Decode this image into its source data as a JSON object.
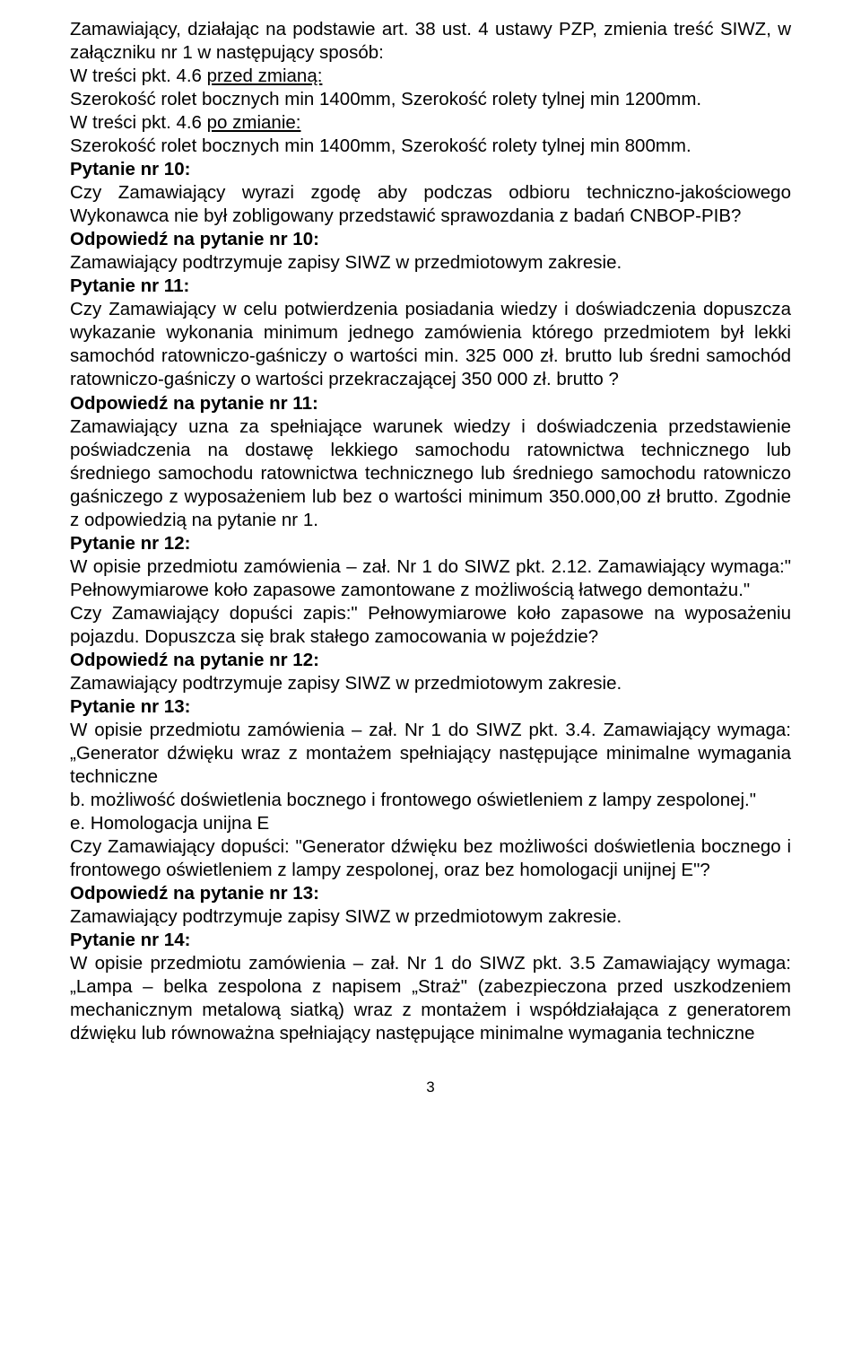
{
  "document": {
    "p01": "Zamawiający, działając na podstawie art. 38 ust. 4 ustawy PZP, zmienia treść SIWZ, w załączniku nr 1 w następujący sposób:",
    "p02a": "W treści pkt. 4.6 ",
    "p02b": "przed zmianą:",
    "p03": "Szerokość rolet bocznych min 1400mm, Szerokość rolety tylnej min 1200mm.",
    "p04a": "W treści pkt. 4.6 ",
    "p04b": "po zmianie:",
    "p05": "Szerokość rolet bocznych min 1400mm, Szerokość rolety tylnej min 800mm.",
    "q10_label": "Pytanie nr 10:",
    "q10_text": "Czy Zamawiający wyrazi zgodę aby podczas odbioru techniczno-jakościowego Wykonawca nie był zobligowany przedstawić sprawozdania z badań CNBOP-PIB?",
    "a10_label": "Odpowiedź na pytanie nr 10:",
    "a10_text": "Zamawiający podtrzymuje zapisy SIWZ w przedmiotowym zakresie.",
    "q11_label": "Pytanie nr 11:",
    "q11_text": "Czy Zamawiający w celu potwierdzenia posiadania wiedzy i doświadczenia dopuszcza wykazanie wykonania minimum jednego zamówienia którego przedmiotem był lekki samochód ratowniczo-gaśniczy o wartości min. 325 000 zł. brutto lub średni samochód ratowniczo-gaśniczy o wartości przekraczającej 350 000 zł. brutto ?",
    "a11_label": "Odpowiedź na pytanie nr 11:",
    "a11_text": "Zamawiający uzna za spełniające warunek wiedzy i doświadczenia przedstawienie poświadczenia na dostawę lekkiego samochodu ratownictwa technicznego lub średniego samochodu ratownictwa technicznego lub średniego samochodu ratowniczo gaśniczego z wyposażeniem lub bez o wartości minimum 350.000,00 zł brutto. Zgodnie z odpowiedzią na pytanie nr 1.",
    "q12_label": "Pytanie nr 12:",
    "q12_text1": "W opisie przedmiotu zamówienia – zał. Nr 1 do SIWZ  pkt. 2.12. Zamawiający wymaga:\" Pełnowymiarowe koło zapasowe zamontowane z możliwością łatwego demontażu.\"",
    "q12_text2": "Czy Zamawiający dopuści zapis:\" Pełnowymiarowe koło zapasowe  na wyposażeniu pojazdu. Dopuszcza się brak stałego zamocowania w pojeździe?",
    "a12_label": "Odpowiedź na pytanie nr 12:",
    "a12_text": "Zamawiający podtrzymuje zapisy SIWZ w przedmiotowym zakresie.",
    "q13_label": "Pytanie nr 13:",
    "q13_text1": "W opisie przedmiotu zamówienia – zał. Nr 1 do SIWZ  pkt. 3.4. Zamawiający wymaga: „Generator dźwięku wraz z montażem spełniający następujące minimalne wymagania techniczne",
    "q13_text2": "b. możliwość doświetlenia bocznego i frontowego oświetleniem z lampy zespolonej.\"",
    "q13_text3": "e. Homologacja unijna E",
    "q13_text4": "Czy Zamawiający dopuści: \"Generator dźwięku bez możliwości doświetlenia bocznego i frontowego oświetleniem z lampy zespolonej, oraz bez homologacji unijnej  E\"?",
    "a13_label": "Odpowiedź na pytanie nr 13:",
    "a13_text": "Zamawiający podtrzymuje zapisy SIWZ w przedmiotowym zakresie.",
    "q14_label": "Pytanie nr 14:",
    "q14_text": "W opisie przedmiotu zamówienia – zał. Nr 1 do SIWZ  pkt. 3.5 Zamawiający wymaga: „Lampa – belka zespolona z napisem „Straż\" (zabezpieczona przed uszkodzeniem mechanicznym metalową siatką) wraz z montażem i współdziałająca z generatorem dźwięku lub równoważna spełniający następujące minimalne wymagania techniczne",
    "page_number": "3"
  }
}
